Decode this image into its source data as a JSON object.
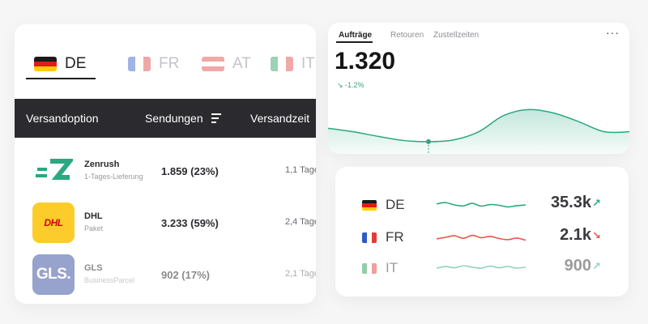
{
  "shipping_table": {
    "tabs": [
      {
        "code": "DE",
        "flag_colors": [
          "#1a1a1a",
          "#dd1c1c",
          "#ffcc00"
        ],
        "active": true
      },
      {
        "code": "FR",
        "flag_colors": [
          "#2f5bc6",
          "#ffffff",
          "#e43b3b"
        ],
        "active": false
      },
      {
        "code": "AT",
        "flag_colors": [
          "#e0423b",
          "#ffffff",
          "#e0423b"
        ],
        "active": false
      },
      {
        "code": "IT",
        "flag_colors": [
          "#2a9c5a",
          "#ffffff",
          "#e0423b"
        ],
        "active": false
      }
    ],
    "columns": [
      "Versandoption",
      "Sendungen",
      "Versandzeit"
    ],
    "sort_icon": "sort-descending-icon",
    "rows": [
      {
        "carrier": "Zenrush",
        "service": "1-Tages-Lieferung",
        "shipments": "1.859 (23%)",
        "time": "1,1 Tage",
        "logo": "zenrush-logo"
      },
      {
        "carrier": "DHL",
        "service": "Paket",
        "shipments": "3.233 (59%)",
        "time": "2,4 Tage",
        "logo": "dhl-logo",
        "logo_text": "DHL"
      },
      {
        "carrier": "GLS",
        "service": "BusinessParcel",
        "shipments": "902 (17%)",
        "time": "2,1 Tage",
        "logo": "gls-logo",
        "logo_text": "GLS."
      }
    ]
  },
  "orders_widget": {
    "tabs": [
      "Aufträge",
      "Retouren",
      "Zustellzeiten"
    ],
    "active_tab": "Aufträge",
    "more_label": "···",
    "value": "1.320",
    "delta": "↘ -1.2%",
    "accent": "#2aa882",
    "trend": [
      0.44,
      0.38,
      0.3,
      0.23,
      0.21,
      0.24,
      0.38,
      0.66,
      0.76,
      0.7,
      0.55,
      0.38,
      0.38
    ]
  },
  "country_stats": {
    "rows": [
      {
        "code": "DE",
        "value": "35.3k",
        "arrow": "↗",
        "direction": "up",
        "flag_colors": [
          "#1a1a1a",
          "#dd1c1c",
          "#ffcc00"
        ],
        "spark_color": "#2aa882",
        "spark": [
          0.55,
          0.62,
          0.5,
          0.45,
          0.58,
          0.44,
          0.52,
          0.48,
          0.4,
          0.46,
          0.5
        ]
      },
      {
        "code": "FR",
        "value": "2.1k",
        "arrow": "↘",
        "direction": "down",
        "flag_colors": [
          "#2f5bc6",
          "#ffffff",
          "#e43b3b"
        ],
        "spark_color": "#e8584a",
        "spark": [
          0.42,
          0.5,
          0.58,
          0.45,
          0.6,
          0.48,
          0.55,
          0.44,
          0.38,
          0.46,
          0.35
        ]
      },
      {
        "code": "IT",
        "value": "900",
        "arrow": "↗",
        "direction": "up",
        "flag_colors": [
          "#2a9c5a",
          "#ffffff",
          "#e0423b"
        ],
        "spark_color": "#2aa882",
        "spark": [
          0.5,
          0.58,
          0.52,
          0.62,
          0.55,
          0.5,
          0.6,
          0.52,
          0.58,
          0.5,
          0.55
        ]
      }
    ]
  }
}
